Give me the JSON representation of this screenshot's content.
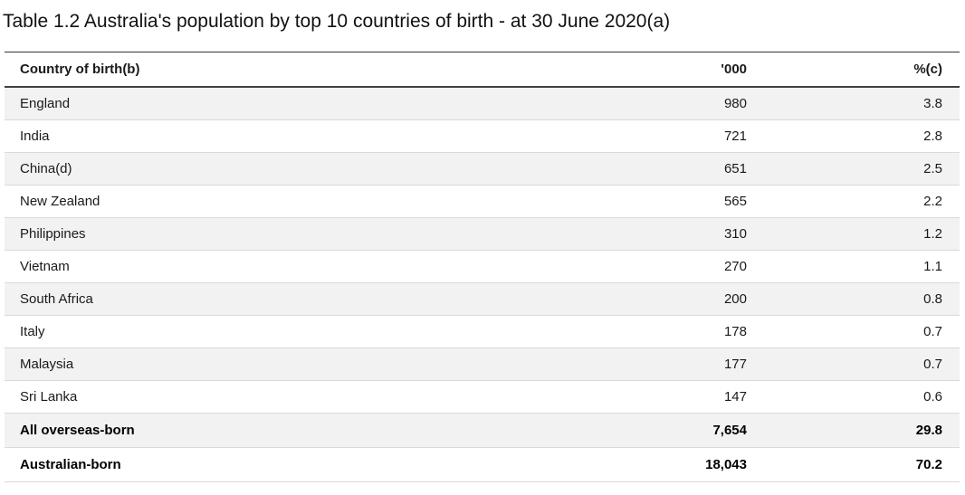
{
  "title": "Table 1.2 Australia's population by top 10 countries of birth - at 30 June 2020(a)",
  "table": {
    "columns": [
      "Country of birth(b)",
      "'000",
      "%(c)"
    ],
    "rows": [
      {
        "country": "England",
        "thousands": "980",
        "percent": "3.8"
      },
      {
        "country": "India",
        "thousands": "721",
        "percent": "2.8"
      },
      {
        "country": "China(d)",
        "thousands": "651",
        "percent": "2.5"
      },
      {
        "country": "New Zealand",
        "thousands": "565",
        "percent": "2.2"
      },
      {
        "country": "Philippines",
        "thousands": "310",
        "percent": "1.2"
      },
      {
        "country": "Vietnam",
        "thousands": "270",
        "percent": "1.1"
      },
      {
        "country": "South Africa",
        "thousands": "200",
        "percent": "0.8"
      },
      {
        "country": "Italy",
        "thousands": "178",
        "percent": "0.7"
      },
      {
        "country": "Malaysia",
        "thousands": "177",
        "percent": "0.7"
      },
      {
        "country": "Sri Lanka",
        "thousands": "147",
        "percent": "0.6"
      }
    ],
    "summary_rows": [
      {
        "country": "All overseas-born",
        "thousands": "7,654",
        "percent": "29.8"
      },
      {
        "country": "Australian-born",
        "thousands": "18,043",
        "percent": "70.2"
      }
    ]
  },
  "colors": {
    "row_shade": "#f2f2f2",
    "divider": "#d9d9d9",
    "header_rule_top": "#333333",
    "header_rule_bottom": "#404040",
    "text": "#1a1a1a"
  },
  "chart_data": {
    "type": "table",
    "title": "Table 1.2 Australia's population by top 10 countries of birth - at 30 June 2020(a)",
    "columns": [
      "Country of birth(b)",
      "'000",
      "%(c)"
    ],
    "rows": [
      [
        "England",
        980,
        3.8
      ],
      [
        "India",
        721,
        2.8
      ],
      [
        "China(d)",
        651,
        2.5
      ],
      [
        "New Zealand",
        565,
        2.2
      ],
      [
        "Philippines",
        310,
        1.2
      ],
      [
        "Vietnam",
        270,
        1.1
      ],
      [
        "South Africa",
        200,
        0.8
      ],
      [
        "Italy",
        178,
        0.7
      ],
      [
        "Malaysia",
        177,
        0.7
      ],
      [
        "Sri Lanka",
        147,
        0.6
      ]
    ],
    "summary_rows": [
      [
        "All overseas-born",
        7654,
        29.8
      ],
      [
        "Australian-born",
        18043,
        70.2
      ]
    ]
  }
}
